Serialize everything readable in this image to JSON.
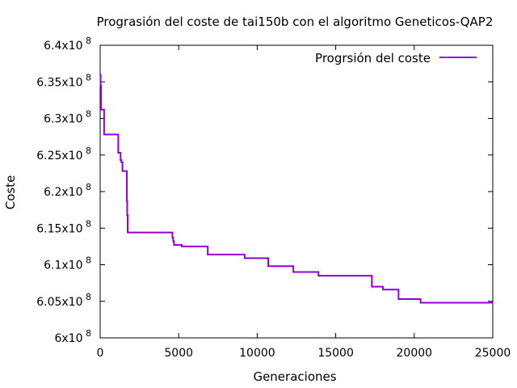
{
  "chart_data": {
    "type": "line",
    "title": "Prograsión del coste de tai150b con el algoritmo Geneticos-QAP2",
    "xlabel": "Generaciones",
    "ylabel": "Coste",
    "xlim": [
      0,
      25000
    ],
    "ylim": [
      600000000,
      640000000
    ],
    "x_ticks": [
      0,
      5000,
      10000,
      15000,
      20000,
      25000
    ],
    "x_tick_labels": [
      "0",
      "5000",
      "10000",
      "15000",
      "20000",
      "25000"
    ],
    "y_ticks": [
      600000000,
      605000000,
      610000000,
      615000000,
      620000000,
      625000000,
      630000000,
      635000000,
      640000000
    ],
    "y_tick_mantissas": [
      "6",
      "6.05",
      "6.1",
      "6.15",
      "6.2",
      "6.25",
      "6.3",
      "6.35",
      "6.4"
    ],
    "y_tick_multiplier": "x10",
    "y_tick_exponent": "8",
    "grid": false,
    "legend_position": "top-right",
    "line_style": "step",
    "series": [
      {
        "name": "Progrsión del coste",
        "color": "#9400d3",
        "x": [
          0,
          30,
          60,
          250,
          1150,
          1300,
          1350,
          1420,
          1700,
          1720,
          1750,
          4600,
          4650,
          4700,
          5200,
          6850,
          9200,
          10700,
          12300,
          13900,
          17300,
          18000,
          19000,
          20400,
          25000
        ],
        "y": [
          636000000,
          634500000,
          631200000,
          627800000,
          625300000,
          624300000,
          624000000,
          622800000,
          618700000,
          616800000,
          614400000,
          613700000,
          613200000,
          612700000,
          612500000,
          611400000,
          610900000,
          609800000,
          609000000,
          608500000,
          607000000,
          606600000,
          605300000,
          604800000,
          604800000
        ]
      }
    ]
  },
  "colors": {
    "axis": "#000000",
    "series": "#9400d3"
  }
}
